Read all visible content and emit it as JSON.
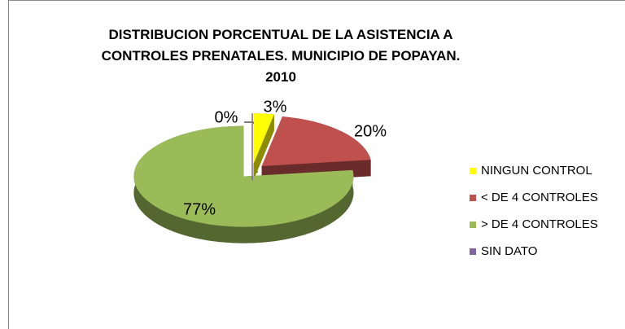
{
  "chart_data": {
    "type": "pie",
    "title": "DISTRIBUCION PORCENTUAL  DE LA ASISTENCIA A CONTROLES PRENATALES. MUNICIPIO DE POPAYAN. 2010",
    "categories": [
      "NINGUN CONTROL",
      "<  DE 4 CONTROLES",
      "> DE 4 CONTROLES",
      "SIN DATO"
    ],
    "values": [
      3,
      20,
      77,
      0
    ],
    "value_labels": [
      "3%",
      "20%",
      "77%",
      "0%"
    ],
    "colors": [
      "#ffff00",
      "#c0504d",
      "#9bbb59",
      "#8064a2"
    ],
    "legend": "right"
  }
}
